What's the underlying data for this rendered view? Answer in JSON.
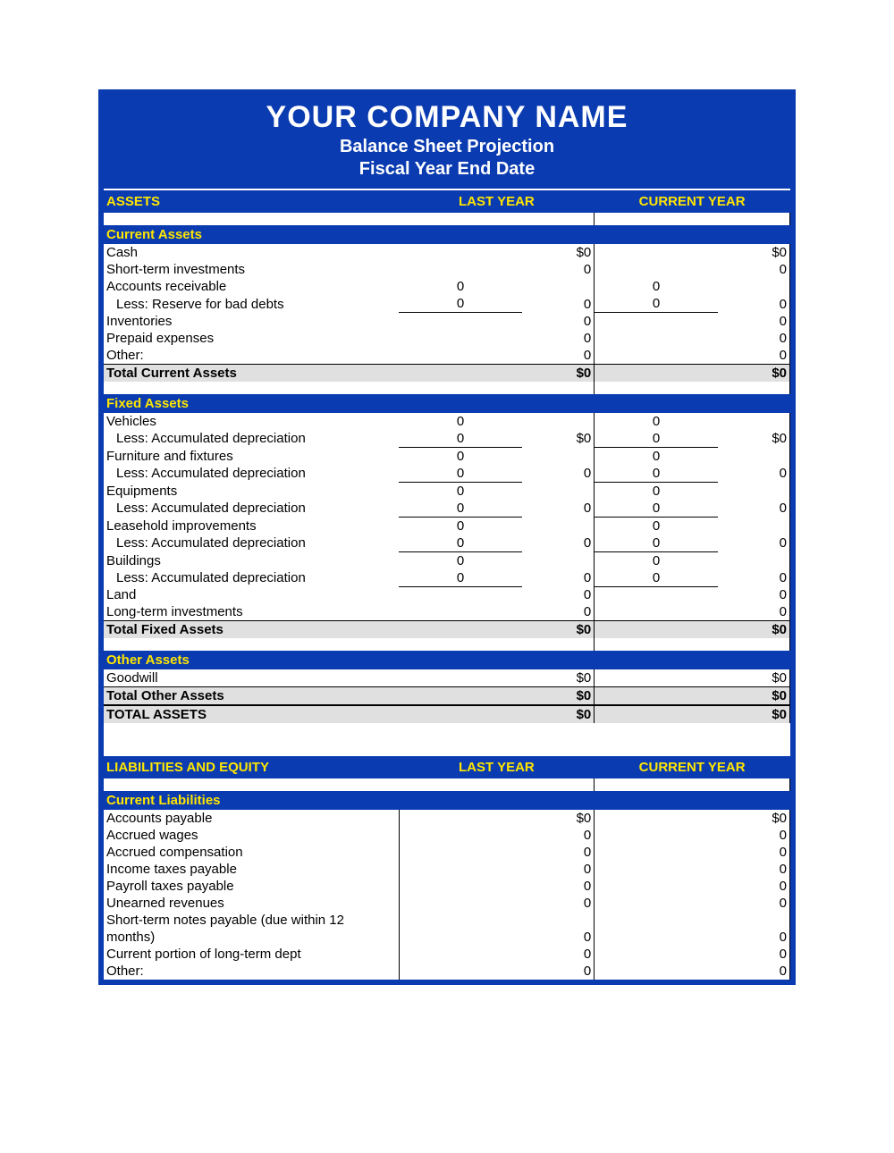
{
  "colors": {
    "primary": "#0a3bb0",
    "accent_text": "#ffe600",
    "total_bg": "#e0e0e0",
    "border": "#000000",
    "background": "#ffffff"
  },
  "header": {
    "company": "YOUR COMPANY NAME",
    "subtitle1": "Balance Sheet Projection",
    "subtitle2": "Fiscal Year End Date"
  },
  "columns": {
    "last": "LAST YEAR",
    "current": "CURRENT YEAR"
  },
  "sections": {
    "assets": {
      "title": "ASSETS",
      "current_assets": {
        "title": "Current Assets",
        "rows": [
          {
            "label": "Cash",
            "ly_sub": "",
            "ly_tot": "$0",
            "cy_sub": "",
            "cy_tot": "$0"
          },
          {
            "label": "Short-term investments",
            "ly_sub": "",
            "ly_tot": "0",
            "cy_sub": "",
            "cy_tot": "0"
          },
          {
            "label": "Accounts receivable",
            "ly_sub": "0",
            "ly_tot": "",
            "cy_sub": "0",
            "cy_tot": ""
          },
          {
            "label": "Less: Reserve for bad debts",
            "indent": true,
            "underline_sub": true,
            "ly_sub": "0",
            "ly_tot": "0",
            "cy_sub": "0",
            "cy_tot": "0"
          },
          {
            "label": "Inventories",
            "ly_sub": "",
            "ly_tot": "0",
            "cy_sub": "",
            "cy_tot": "0"
          },
          {
            "label": "Prepaid expenses",
            "ly_sub": "",
            "ly_tot": "0",
            "cy_sub": "",
            "cy_tot": "0"
          },
          {
            "label": "Other:",
            "ly_sub": "",
            "ly_tot": "0",
            "cy_sub": "",
            "cy_tot": "0"
          }
        ],
        "total": {
          "label": "Total Current Assets",
          "ly": "$0",
          "cy": "$0"
        }
      },
      "fixed_assets": {
        "title": "Fixed Assets",
        "rows": [
          {
            "label": "Vehicles",
            "ly_sub": "0",
            "ly_tot": "",
            "cy_sub": "0",
            "cy_tot": ""
          },
          {
            "label": "Less: Accumulated depreciation",
            "indent": true,
            "underline_sub": true,
            "ly_sub": "0",
            "ly_tot": "$0",
            "cy_sub": "0",
            "cy_tot": "$0"
          },
          {
            "label": "Furniture and fixtures",
            "ly_sub": "0",
            "ly_tot": "",
            "cy_sub": "0",
            "cy_tot": ""
          },
          {
            "label": "Less: Accumulated depreciation",
            "indent": true,
            "underline_sub": true,
            "ly_sub": "0",
            "ly_tot": "0",
            "cy_sub": "0",
            "cy_tot": "0"
          },
          {
            "label": "Equipments",
            "ly_sub": "0",
            "ly_tot": "",
            "cy_sub": "0",
            "cy_tot": ""
          },
          {
            "label": "Less: Accumulated depreciation",
            "indent": true,
            "underline_sub": true,
            "ly_sub": "0",
            "ly_tot": "0",
            "cy_sub": "0",
            "cy_tot": "0"
          },
          {
            "label": "Leasehold improvements",
            "ly_sub": "0",
            "ly_tot": "",
            "cy_sub": "0",
            "cy_tot": ""
          },
          {
            "label": "Less: Accumulated depreciation",
            "indent": true,
            "underline_sub": true,
            "ly_sub": "0",
            "ly_tot": "0",
            "cy_sub": "0",
            "cy_tot": "0"
          },
          {
            "label": "Buildings",
            "ly_sub": "0",
            "ly_tot": "",
            "cy_sub": "0",
            "cy_tot": ""
          },
          {
            "label": "Less: Accumulated depreciation",
            "indent": true,
            "underline_sub": true,
            "ly_sub": "0",
            "ly_tot": "0",
            "cy_sub": "0",
            "cy_tot": "0"
          },
          {
            "label": "Land",
            "ly_sub": "",
            "ly_tot": "0",
            "cy_sub": "",
            "cy_tot": "0"
          },
          {
            "label": "Long-term investments",
            "ly_sub": "",
            "ly_tot": "0",
            "cy_sub": "",
            "cy_tot": "0"
          }
        ],
        "total": {
          "label": "Total Fixed Assets",
          "ly": "$0",
          "cy": "$0"
        }
      },
      "other_assets": {
        "title": "Other Assets",
        "rows": [
          {
            "label": "Goodwill",
            "ly_sub": "",
            "ly_tot": "$0",
            "cy_sub": "",
            "cy_tot": "$0"
          }
        ],
        "total": {
          "label": "Total Other Assets",
          "ly": "$0",
          "cy": "$0"
        }
      },
      "grand_total": {
        "label": "TOTAL ASSETS",
        "ly": "$0",
        "cy": "$0"
      }
    },
    "liabilities": {
      "title": "LIABILITIES AND EQUITY",
      "current_liabilities": {
        "title": "Current Liabilities",
        "rows": [
          {
            "label": "Accounts payable",
            "ly_tot": "$0",
            "cy_tot": "$0"
          },
          {
            "label": "Accrued wages",
            "ly_tot": "0",
            "cy_tot": "0"
          },
          {
            "label": "Accrued compensation",
            "ly_tot": "0",
            "cy_tot": "0"
          },
          {
            "label": "Income taxes payable",
            "ly_tot": "0",
            "cy_tot": "0"
          },
          {
            "label": "Payroll taxes payable",
            "ly_tot": "0",
            "cy_tot": "0"
          },
          {
            "label": "Unearned revenues",
            "ly_tot": "0",
            "cy_tot": "0"
          },
          {
            "label": "Short-term notes payable (due within 12 months)",
            "ly_tot": "0",
            "cy_tot": "0"
          },
          {
            "label": "Current portion of long-term dept",
            "ly_tot": "0",
            "cy_tot": "0"
          },
          {
            "label": "Other:",
            "ly_tot": "0",
            "cy_tot": "0"
          }
        ]
      }
    }
  }
}
